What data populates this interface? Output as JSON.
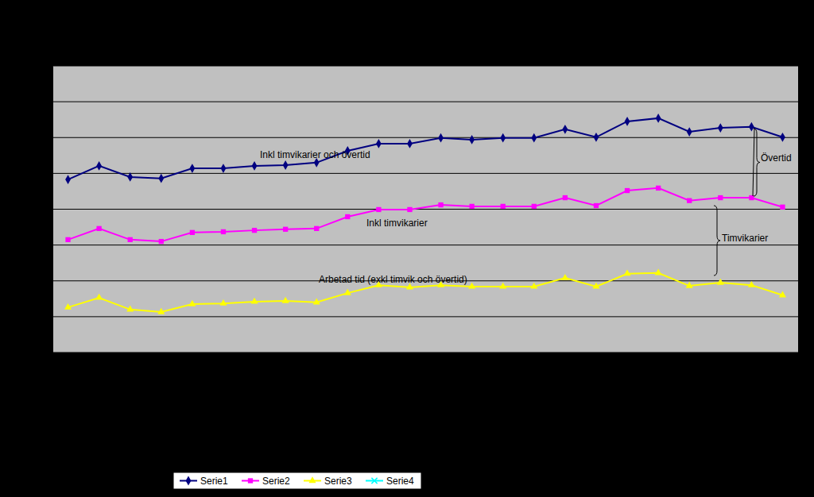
{
  "chart_data": {
    "type": "line",
    "categories": [
      null,
      null,
      null,
      null,
      null,
      null,
      null,
      null,
      null,
      null,
      null,
      null,
      null,
      null,
      null,
      null,
      null,
      null,
      null,
      null,
      null,
      null,
      null,
      null
    ],
    "series": [
      {
        "name": "Serie1",
        "color": "#000080",
        "marker": "diamond",
        "values": [
          4.83,
          5.21,
          4.9,
          4.86,
          5.14,
          5.14,
          5.21,
          5.23,
          5.3,
          5.63,
          5.83,
          5.83,
          5.99,
          5.94,
          5.99,
          5.99,
          6.23,
          6.01,
          6.45,
          6.54,
          6.16,
          6.27,
          6.3,
          6.01
        ]
      },
      {
        "name": "Serie2",
        "color": "#ff00ff",
        "marker": "square",
        "values": [
          3.15,
          3.46,
          3.15,
          3.1,
          3.35,
          3.37,
          3.41,
          3.44,
          3.46,
          3.79,
          3.99,
          3.99,
          4.12,
          4.08,
          4.08,
          4.08,
          4.32,
          4.1,
          4.52,
          4.59,
          4.24,
          4.32,
          4.32,
          4.06
        ]
      },
      {
        "name": "Serie3",
        "color": "#ffff00",
        "marker": "triangle",
        "values": [
          1.26,
          1.53,
          1.2,
          1.13,
          1.35,
          1.37,
          1.42,
          1.44,
          1.4,
          1.66,
          1.88,
          1.82,
          1.88,
          1.84,
          1.84,
          1.84,
          2.08,
          1.84,
          2.2,
          2.22,
          1.86,
          1.95,
          1.88,
          1.6
        ]
      },
      {
        "name": "Serie4",
        "color": "#00ffff",
        "marker": "x",
        "values": [
          null,
          null,
          null,
          null,
          null,
          null,
          null,
          null,
          null,
          null,
          null,
          null,
          null,
          null,
          null,
          null,
          null,
          null,
          null,
          null,
          null,
          null,
          null,
          null
        ]
      }
    ],
    "ylim": [
      0,
      8
    ],
    "yticks": [
      0,
      1,
      2,
      3,
      4,
      5,
      6,
      7,
      8
    ],
    "grid": true,
    "tick_labels": false,
    "legend": "bottom",
    "annotations": [
      {
        "text": "Inkl timvikarier och övertid"
      },
      {
        "text": "Inkl timvikarier"
      },
      {
        "text": "Arbetad tid (exkl timvik och övertid)"
      },
      {
        "text": "Övertid"
      },
      {
        "text": "Timvikarier"
      }
    ]
  }
}
